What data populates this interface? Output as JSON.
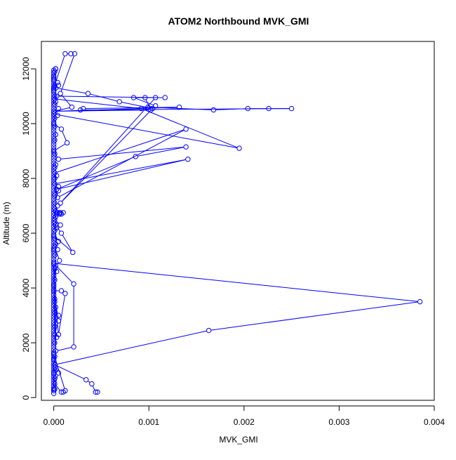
{
  "chart_data": {
    "type": "line",
    "title": "ATOM2 Northbound MVK_GMI",
    "xlabel": "MVK_GMI",
    "ylabel": "Altitude (m)",
    "xlim": [
      -0.00013,
      0.004
    ],
    "ylim": [
      -100,
      13000
    ],
    "xticks": [
      0,
      0.001,
      0.002,
      0.003,
      0.004
    ],
    "xtick_labels": [
      "0.000",
      "0.001",
      "0.002",
      "0.003",
      "0.004"
    ],
    "yticks": [
      0,
      2000,
      4000,
      6000,
      8000,
      10000,
      12000
    ],
    "ytick_labels": [
      "0",
      "2000",
      "4000",
      "6000",
      "8000",
      "10000",
      "12000"
    ],
    "grid": false,
    "marker": "open circle",
    "line_color": "#0000ff",
    "series": [
      {
        "points": [
          [
            0.00046,
            200
          ],
          [
            0.00044,
            200
          ],
          [
            0.0004,
            500
          ],
          [
            0.00034,
            650
          ],
          [
            1e-05,
            1200
          ],
          [
            0.0,
            1600
          ],
          [
            0.00012,
            250
          ],
          [
            0.0001,
            200
          ],
          [
            8e-05,
            200
          ],
          [
            1e-05,
            500
          ],
          [
            0.0,
            900
          ],
          [
            1e-05,
            1100
          ],
          [
            5e-05,
            900
          ],
          [
            0.0,
            300
          ],
          [
            0.0,
            1400
          ],
          [
            1e-05,
            1200
          ],
          [
            0.00163,
            2450
          ],
          [
            0.00385,
            3500
          ],
          [
            0.0,
            4900
          ],
          [
            1e-05,
            3500
          ],
          [
            2e-05,
            1700
          ],
          [
            0.00021,
            1850
          ],
          [
            0.00021,
            4150
          ],
          [
            0.0,
            4900
          ],
          [
            1e-05,
            2300
          ],
          [
            5e-05,
            2800
          ],
          [
            0.0,
            3900
          ],
          [
            8e-05,
            3900
          ],
          [
            0.00012,
            3800
          ],
          [
            5e-05,
            2300
          ],
          [
            0.0,
            4100
          ],
          [
            2e-05,
            4800
          ],
          [
            6e-05,
            5000
          ],
          [
            1e-05,
            5500
          ],
          [
            0.0,
            5400
          ],
          [
            5e-05,
            5700
          ],
          [
            0.0,
            5900
          ],
          [
            0.0002,
            5300
          ],
          [
            8e-05,
            6000
          ],
          [
            2e-05,
            6300
          ],
          [
            7e-05,
            6300
          ],
          [
            1e-05,
            6500
          ],
          [
            3e-05,
            6700
          ],
          [
            6e-05,
            6700
          ],
          [
            0.0001,
            6750
          ],
          [
            2e-05,
            6800
          ],
          [
            4e-05,
            7000
          ],
          [
            1e-05,
            7100
          ],
          [
            5e-05,
            7550
          ],
          [
            3e-05,
            7600
          ],
          [
            0.00141,
            8700
          ],
          [
            1e-05,
            7800
          ],
          [
            4e-05,
            7300
          ],
          [
            0.00139,
            9800
          ],
          [
            1e-05,
            8200
          ],
          [
            3e-05,
            7600
          ],
          [
            0.00086,
            8800
          ],
          [
            0.00139,
            9150
          ],
          [
            5e-05,
            8700
          ],
          [
            0.0,
            9000
          ],
          [
            0.00014,
            9300
          ],
          [
            8e-05,
            9800
          ],
          [
            0.0,
            10000
          ],
          [
            1e-05,
            10400
          ],
          [
            5e-05,
            10550
          ],
          [
            0.0,
            10350
          ],
          [
            0.00195,
            9100
          ],
          [
            0.00092,
            10550
          ],
          [
            1e-05,
            10900
          ],
          [
            3e-05,
            11000
          ],
          [
            0.00107,
            10950
          ],
          [
            7e-05,
            7100
          ],
          [
            0.00104,
            10550
          ],
          [
            0.00069,
            10800
          ],
          [
            0.00036,
            11100
          ],
          [
            2e-05,
            11300
          ],
          [
            5e-05,
            11400
          ],
          [
            0.0,
            11200
          ],
          [
            4e-05,
            11500
          ],
          [
            0.0,
            11700
          ],
          [
            2e-05,
            12000
          ],
          [
            0.0,
            11850
          ],
          [
            0.0,
            11600
          ],
          [
            0.0,
            11300
          ],
          [
            0.00012,
            12550
          ],
          [
            0.00018,
            12550
          ],
          [
            0.00022,
            12550
          ],
          [
            7e-05,
            11100
          ],
          [
            0.00019,
            10600
          ],
          [
            0.0,
            10450
          ],
          [
            0.00132,
            10600
          ],
          [
            0.00031,
            10550
          ],
          [
            0.00028,
            10500
          ],
          [
            0.0025,
            10550
          ],
          [
            0.00226,
            10550
          ],
          [
            0.00204,
            10550
          ],
          [
            0.00168,
            10500
          ],
          [
            0.00099,
            10600
          ],
          [
            0.00107,
            10650
          ],
          [
            0.00084,
            10950
          ],
          [
            0.00117,
            10950
          ],
          [
            0.00096,
            10950
          ],
          [
            0.00102,
            10500
          ],
          [
            0.0,
            10450
          ]
        ]
      }
    ],
    "column_points": [
      [
        0.0,
        150
      ],
      [
        0.0,
        250
      ],
      [
        0.0,
        350
      ],
      [
        0.0,
        450
      ],
      [
        0.0,
        550
      ],
      [
        0.0,
        650
      ],
      [
        0.0,
        750
      ],
      [
        0.0,
        850
      ],
      [
        0.0,
        950
      ],
      [
        0.0,
        1050
      ],
      [
        0.0,
        1150
      ],
      [
        0.0,
        1250
      ],
      [
        0.0,
        1350
      ],
      [
        0.0,
        1450
      ],
      [
        0.0,
        1550
      ],
      [
        0.0,
        1650
      ],
      [
        0.0,
        1750
      ],
      [
        0.0,
        1850
      ],
      [
        0.0,
        1950
      ],
      [
        0.0,
        2050
      ],
      [
        0.0,
        2150
      ],
      [
        0.0,
        2250
      ],
      [
        0.0,
        2350
      ],
      [
        0.0,
        2450
      ],
      [
        0.0,
        2550
      ],
      [
        0.0,
        2650
      ],
      [
        0.0,
        2750
      ],
      [
        0.0,
        2850
      ],
      [
        0.0,
        2950
      ],
      [
        0.0,
        3050
      ],
      [
        0.0,
        3150
      ],
      [
        0.0,
        3250
      ],
      [
        0.0,
        3350
      ],
      [
        0.0,
        3450
      ],
      [
        0.0,
        3550
      ],
      [
        0.0,
        3650
      ],
      [
        0.0,
        3750
      ],
      [
        0.0,
        3850
      ],
      [
        0.0,
        3950
      ],
      [
        0.0,
        4050
      ],
      [
        0.0,
        4150
      ],
      [
        0.0,
        4250
      ],
      [
        0.0,
        4350
      ],
      [
        0.0,
        4450
      ],
      [
        0.0,
        4550
      ],
      [
        0.0,
        4650
      ],
      [
        0.0,
        4750
      ],
      [
        0.0,
        4850
      ],
      [
        0.0,
        4950
      ],
      [
        0.0,
        5050
      ],
      [
        0.0,
        5150
      ],
      [
        0.0,
        5250
      ],
      [
        0.0,
        5350
      ],
      [
        0.0,
        5450
      ],
      [
        0.0,
        5550
      ],
      [
        0.0,
        5650
      ],
      [
        0.0,
        5750
      ],
      [
        0.0,
        5850
      ],
      [
        0.0,
        5950
      ],
      [
        0.0,
        6050
      ],
      [
        0.0,
        6150
      ],
      [
        0.0,
        6250
      ],
      [
        0.0,
        6350
      ],
      [
        0.0,
        6450
      ],
      [
        0.0,
        6550
      ],
      [
        0.0,
        6650
      ],
      [
        0.0,
        6750
      ],
      [
        0.0,
        6850
      ],
      [
        0.0,
        6950
      ],
      [
        0.0,
        7050
      ],
      [
        0.0,
        7150
      ],
      [
        0.0,
        7250
      ],
      [
        0.0,
        7350
      ],
      [
        0.0,
        7450
      ],
      [
        0.0,
        7550
      ],
      [
        0.0,
        7650
      ],
      [
        0.0,
        7750
      ],
      [
        0.0,
        7850
      ],
      [
        0.0,
        7950
      ],
      [
        0.0,
        8050
      ],
      [
        0.0,
        8150
      ],
      [
        0.0,
        8250
      ],
      [
        0.0,
        8350
      ],
      [
        0.0,
        8450
      ],
      [
        0.0,
        8550
      ],
      [
        0.0,
        8650
      ],
      [
        0.0,
        8750
      ],
      [
        0.0,
        8850
      ],
      [
        0.0,
        8950
      ],
      [
        0.0,
        9050
      ],
      [
        0.0,
        9150
      ],
      [
        0.0,
        9250
      ],
      [
        0.0,
        9350
      ],
      [
        0.0,
        9450
      ],
      [
        0.0,
        9550
      ],
      [
        0.0,
        9650
      ],
      [
        0.0,
        9750
      ],
      [
        0.0,
        9850
      ],
      [
        0.0,
        9950
      ],
      [
        0.0,
        10050
      ],
      [
        0.0,
        10150
      ],
      [
        0.0,
        10250
      ],
      [
        0.0,
        10350
      ],
      [
        0.0,
        10450
      ],
      [
        0.0,
        10550
      ],
      [
        0.0,
        10650
      ],
      [
        0.0,
        10750
      ],
      [
        0.0,
        10850
      ],
      [
        0.0,
        10950
      ],
      [
        0.0,
        11050
      ],
      [
        0.0,
        11150
      ],
      [
        0.0,
        11250
      ],
      [
        0.0,
        11350
      ],
      [
        0.0,
        11450
      ],
      [
        0.0,
        11550
      ],
      [
        0.0,
        11650
      ],
      [
        0.0,
        11750
      ],
      [
        0.0,
        11850
      ],
      [
        0.0,
        11950
      ],
      [
        1e-05,
        300
      ],
      [
        1e-05,
        700
      ],
      [
        1e-05,
        1500
      ],
      [
        1e-05,
        2000
      ],
      [
        1e-05,
        2600
      ],
      [
        1e-05,
        3100
      ],
      [
        1e-05,
        3600
      ],
      [
        1e-05,
        4300
      ],
      [
        1e-05,
        4700
      ],
      [
        1e-05,
        5200
      ],
      [
        1e-05,
        5800
      ],
      [
        1e-05,
        6100
      ],
      [
        1e-05,
        6400
      ],
      [
        1e-05,
        6900
      ],
      [
        1e-05,
        7400
      ],
      [
        1e-05,
        8000
      ],
      [
        1e-05,
        8400
      ],
      [
        1e-05,
        8900
      ],
      [
        1e-05,
        9400
      ],
      [
        1e-05,
        9900
      ],
      [
        1e-05,
        10200
      ],
      [
        1e-05,
        10700
      ],
      [
        1e-05,
        11000
      ],
      [
        1e-05,
        11400
      ],
      [
        1e-05,
        11900
      ],
      [
        2e-05,
        1000
      ],
      [
        2e-05,
        3300
      ],
      [
        2e-05,
        5600
      ],
      [
        2e-05,
        6600
      ],
      [
        2e-05,
        8500
      ],
      [
        2e-05,
        9600
      ],
      [
        2e-05,
        10800
      ],
      [
        3e-05,
        2200
      ],
      [
        3e-05,
        6200
      ],
      [
        3e-05,
        8100
      ],
      [
        4e-05,
        5400
      ],
      [
        4e-05,
        6750
      ],
      [
        5e-05,
        3000
      ],
      [
        5e-05,
        7700
      ],
      [
        6e-05,
        6750
      ],
      [
        7e-05,
        6750
      ],
      [
        8e-05,
        6700
      ],
      [
        3e-05,
        4600
      ],
      [
        4e-05,
        10300
      ],
      [
        2e-05,
        12000
      ]
    ]
  }
}
